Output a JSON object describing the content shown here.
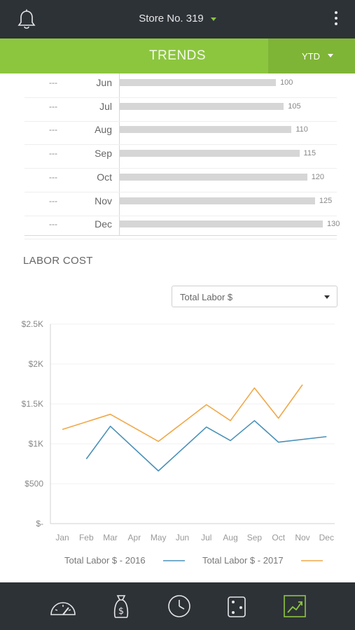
{
  "header": {
    "store_label": "Store No. 319"
  },
  "trends": {
    "title": "TRENDS",
    "period": "YTD"
  },
  "bar_rows": [
    {
      "dash": "---",
      "month": "Jun",
      "value": 100
    },
    {
      "dash": "---",
      "month": "Jul",
      "value": 105
    },
    {
      "dash": "---",
      "month": "Aug",
      "value": 110
    },
    {
      "dash": "---",
      "month": "Sep",
      "value": 115
    },
    {
      "dash": "---",
      "month": "Oct",
      "value": 120
    },
    {
      "dash": "---",
      "month": "Nov",
      "value": 125
    },
    {
      "dash": "---",
      "month": "Dec",
      "value": 130
    }
  ],
  "labor": {
    "title": "LABOR COST",
    "select_value": "Total Labor $"
  },
  "chart_data": {
    "type": "line",
    "categories": [
      "Jan",
      "Feb",
      "Mar",
      "Apr",
      "May",
      "Jun",
      "Jul",
      "Aug",
      "Sep",
      "Oct",
      "Nov",
      "Dec"
    ],
    "y_tick_labels": [
      "$-",
      "$500",
      "$1K",
      "$1.5K",
      "$2K",
      "$2.5K"
    ],
    "ylim": [
      0,
      2500
    ],
    "grid": true,
    "legend_position": "bottom",
    "series": [
      {
        "name": "Total Labor $ - 2016",
        "color": "#4a90b8",
        "values": [
          null,
          810,
          1220,
          null,
          660,
          null,
          1210,
          1040,
          1290,
          1020,
          null,
          1090
        ]
      },
      {
        "name": "Total Labor $ - 2017",
        "color": "#f0a848",
        "values": [
          1180,
          null,
          1370,
          null,
          1030,
          null,
          1490,
          1290,
          1700,
          1320,
          1740,
          null
        ]
      }
    ]
  },
  "nav": {
    "items": [
      {
        "icon": "speedometer-icon",
        "active": false
      },
      {
        "icon": "money-bag-icon",
        "active": false
      },
      {
        "icon": "clock-icon",
        "active": false
      },
      {
        "icon": "wallet-icon",
        "active": false
      },
      {
        "icon": "trend-chart-icon",
        "active": true
      }
    ],
    "accent_color": "#8cc63f"
  }
}
